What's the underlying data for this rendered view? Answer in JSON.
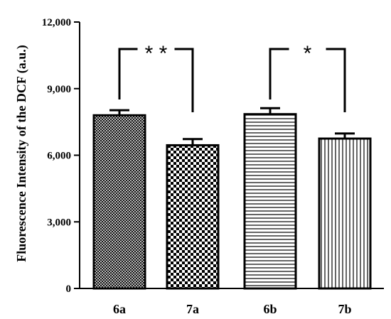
{
  "chart_data": {
    "type": "bar",
    "title": "",
    "xlabel": "",
    "ylabel": "Fluorescence Intensity of the DCF (a.u.)",
    "categories": [
      "6a",
      "7a",
      "6b",
      "7b"
    ],
    "values": [
      7800,
      6450,
      7850,
      6750
    ],
    "errors": [
      230,
      280,
      270,
      230
    ],
    "ylim": [
      0,
      12000
    ],
    "yticks": [
      0,
      3000,
      6000,
      9000,
      12000
    ],
    "ytick_labels": [
      "0",
      "3,000",
      "6,000",
      "9,000",
      "12,000"
    ],
    "patterns": [
      "crosshatch-fine",
      "checkerboard",
      "horizontal-lines",
      "vertical-lines"
    ],
    "significance": [
      {
        "pair": [
          "6a",
          "7a"
        ],
        "label": "* *"
      },
      {
        "pair": [
          "6b",
          "7b"
        ],
        "label": "*"
      }
    ],
    "grid": false,
    "legend": "none"
  }
}
